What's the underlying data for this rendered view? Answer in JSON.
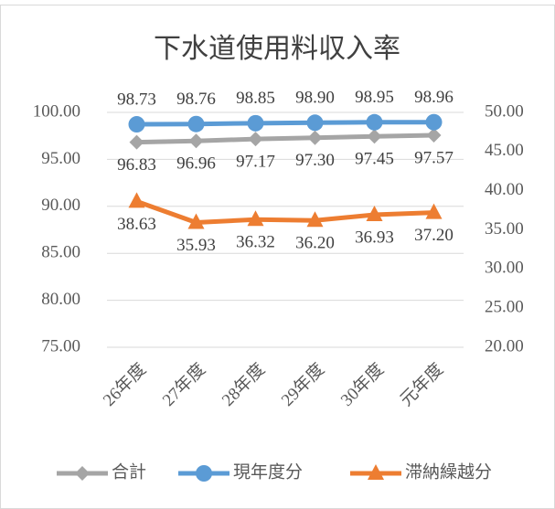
{
  "chart_data": {
    "type": "line",
    "title": "下水道使用料収入率",
    "categories": [
      "26年度",
      "27年度",
      "28年度",
      "29年度",
      "30年度",
      "元年度"
    ],
    "series": [
      {
        "name": "合計",
        "color": "#a5a5a5",
        "marker": "diamond",
        "values": [
          96.83,
          96.96,
          97.17,
          97.3,
          97.45,
          97.57
        ],
        "value_labels": [
          "96.83",
          "96.96",
          "97.17",
          "97.30",
          "97.45",
          "97.57"
        ]
      },
      {
        "name": "現年度分",
        "color": "#5b9bd5",
        "marker": "circle",
        "values": [
          98.73,
          98.76,
          98.85,
          98.9,
          98.95,
          98.96
        ],
        "value_labels": [
          "98.73",
          "98.76",
          "98.85",
          "98.90",
          "98.95",
          "98.96"
        ]
      },
      {
        "name": "滞納繰越分",
        "color": "#ed7d31",
        "marker": "triangle",
        "axis": "y2",
        "values": [
          38.63,
          35.93,
          36.32,
          36.2,
          36.93,
          37.2
        ],
        "value_labels": [
          "38.63",
          "35.93",
          "36.32",
          "36.20",
          "36.93",
          "37.20"
        ]
      }
    ],
    "ylim": [
      75,
      100
    ],
    "yticks": [
      {
        "value": 75,
        "label": "75.00"
      },
      {
        "value": 80,
        "label": "80.00"
      },
      {
        "value": 85,
        "label": "85.00"
      },
      {
        "value": 90,
        "label": "90.00"
      },
      {
        "value": 95,
        "label": "95.00"
      },
      {
        "value": 100,
        "label": "100.00"
      }
    ],
    "y2lim": [
      20,
      50
    ],
    "y2ticks": [
      {
        "value": 20,
        "label": "20.00"
      },
      {
        "value": 25,
        "label": "25.00"
      },
      {
        "value": 30,
        "label": "30.00"
      },
      {
        "value": 35,
        "label": "35.00"
      },
      {
        "value": 40,
        "label": "40.00"
      },
      {
        "value": 45,
        "label": "45.00"
      },
      {
        "value": 50,
        "label": "50.00"
      }
    ],
    "grid": true,
    "legend": "bottom"
  }
}
